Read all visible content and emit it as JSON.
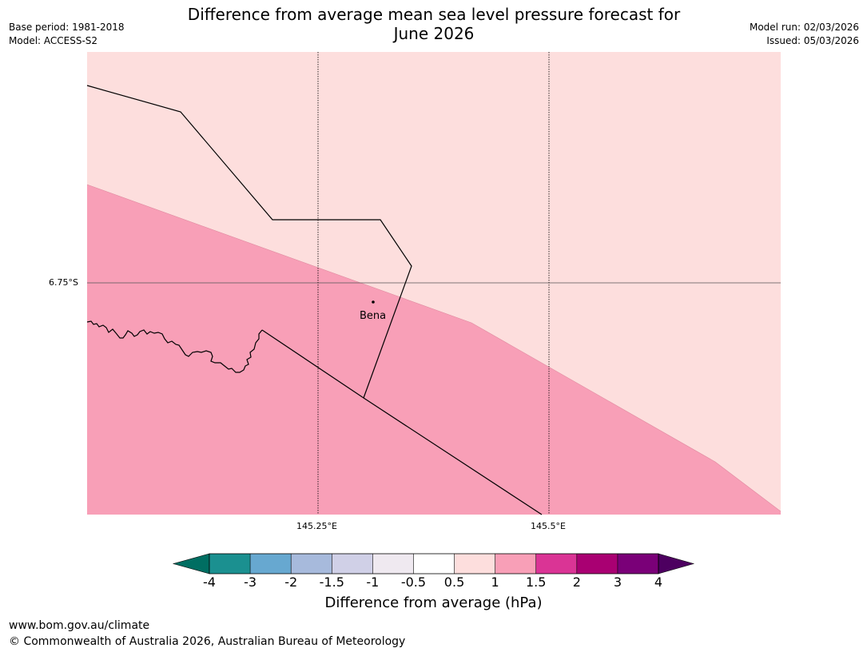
{
  "header": {
    "title_line1": "Difference from average mean sea level pressure forecast for",
    "title_line2": "June 2026",
    "base_period": "Base period: 1981-2018",
    "model": "Model: ACCESS-S2",
    "model_run": "Model run: 02/03/2026",
    "issued": "Issued: 05/03/2026"
  },
  "map": {
    "latitude_labels": [
      "6.75°S"
    ],
    "longitude_labels": [
      "145.25°E",
      "145.5°E"
    ],
    "place_label": "Bena",
    "colors": {
      "band_0_5_to_1": "#fddedd",
      "band_1_to_1_5": "#f89fb7"
    }
  },
  "colorbar": {
    "ticks": [
      "-4",
      "-3",
      "-2",
      "-1.5",
      "-1",
      "-0.5",
      "0.5",
      "1",
      "1.5",
      "2",
      "3",
      "4"
    ],
    "colors": [
      "#1b9090",
      "#67a8d0",
      "#a7badc",
      "#d0d0e7",
      "#efe9f0",
      "#ffffff",
      "#fddedd",
      "#f89fb7",
      "#da3495",
      "#a90072",
      "#7a0078"
    ],
    "extend_low_color": "#006e62",
    "extend_high_color": "#4d0060",
    "label": "Difference from average (hPa)"
  },
  "footer": {
    "website": "www.bom.gov.au/climate",
    "copyright": "© Commonwealth of Australia 2026, Australian Bureau of Meteorology"
  }
}
